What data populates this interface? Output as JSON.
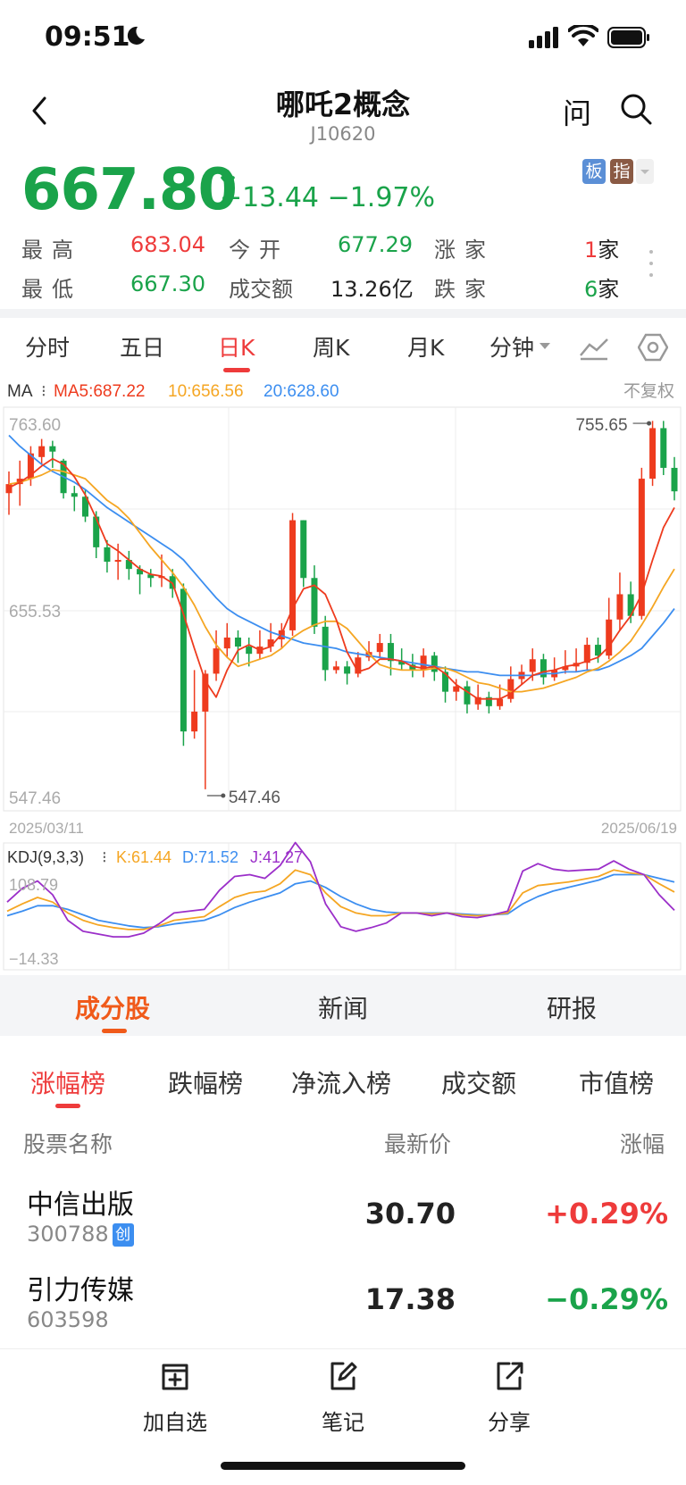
{
  "status_bar": {
    "time": "09:51"
  },
  "header": {
    "title": "哪吒2概念",
    "code": "J10620",
    "ask_label": "问"
  },
  "quote": {
    "price": "667.80",
    "change": "−13.44",
    "change_pct": "−1.97%",
    "badges": [
      {
        "label": "板",
        "color": "#5b8fd6"
      },
      {
        "label": "指",
        "color": "#8a5a44"
      }
    ],
    "stats": {
      "high_label": "最高",
      "high": "683.04",
      "open_label": "今开",
      "open": "677.29",
      "up_label": "涨家",
      "up_count": "1",
      "up_unit": "家",
      "low_label": "最低",
      "low": "667.30",
      "amount_label": "成交额",
      "amount": "13.26亿",
      "down_label": "跌家",
      "down_count": "6",
      "down_unit": "家"
    }
  },
  "period_tabs": [
    "分时",
    "五日",
    "日K",
    "周K",
    "月K",
    "分钟"
  ],
  "period_active": "日K",
  "chart_data": [
    {
      "type": "candlestick",
      "legend": {
        "ma_label": "MA",
        "ma5": "MA5:687.22",
        "ma10": "10:656.56",
        "ma20": "20:628.60",
        "adjust": "不复权"
      },
      "y_ticks": [
        "763.60",
        "655.53",
        "547.46"
      ],
      "ylim": [
        547.46,
        763.6
      ],
      "x_start": "2025/03/11",
      "x_end": "2025/06/19",
      "high_marker": "755.65",
      "low_marker": "547.46",
      "colors": {
        "up": "#ee3b1e",
        "down": "#1aa34a",
        "ma5": "#ee3b1e",
        "ma10": "#f5a623",
        "ma20": "#3c8ef0"
      },
      "candles": [
        [
          716,
          721,
          704,
          728
        ],
        [
          721,
          724,
          709,
          734
        ],
        [
          724,
          738,
          720,
          742
        ],
        [
          736,
          742,
          732,
          746
        ],
        [
          742,
          739,
          730,
          745
        ],
        [
          734,
          716,
          713,
          735
        ],
        [
          716,
          714,
          706,
          720
        ],
        [
          714,
          703,
          700,
          718
        ],
        [
          703,
          686,
          680,
          706
        ],
        [
          686,
          678,
          672,
          690
        ],
        [
          678,
          679,
          668,
          688
        ],
        [
          679,
          674,
          668,
          684
        ],
        [
          674,
          671,
          660,
          676
        ],
        [
          671,
          669,
          664,
          674
        ],
        [
          669,
          670,
          664,
          682
        ],
        [
          670,
          663,
          658,
          674
        ],
        [
          663,
          584,
          576,
          666
        ],
        [
          584,
          595,
          580,
          618
        ],
        [
          595,
          616,
          552,
          618
        ],
        [
          616,
          630,
          612,
          640
        ],
        [
          630,
          636,
          625,
          644
        ],
        [
          636,
          631,
          622,
          640
        ],
        [
          631,
          627,
          620,
          636
        ],
        [
          627,
          631,
          624,
          640
        ],
        [
          631,
          635,
          628,
          644
        ],
        [
          635,
          640,
          630,
          644
        ],
        [
          640,
          701,
          637,
          705
        ],
        [
          701,
          669,
          664,
          701
        ],
        [
          669,
          642,
          638,
          676
        ],
        [
          642,
          618,
          612,
          648
        ],
        [
          618,
          620,
          616,
          623
        ],
        [
          620,
          616,
          610,
          623
        ],
        [
          616,
          625,
          614,
          628
        ],
        [
          625,
          628,
          623,
          634
        ],
        [
          628,
          633,
          625,
          638
        ],
        [
          633,
          623,
          615,
          638
        ],
        [
          623,
          621,
          618,
          630
        ],
        [
          621,
          618,
          614,
          627
        ],
        [
          618,
          626,
          614,
          630
        ],
        [
          626,
          617,
          612,
          628
        ],
        [
          617,
          606,
          600,
          620
        ],
        [
          606,
          609,
          601,
          613
        ],
        [
          609,
          599,
          594,
          612
        ],
        [
          599,
          603,
          596,
          610
        ],
        [
          603,
          598,
          594,
          606
        ],
        [
          598,
          602,
          596,
          610
        ],
        [
          602,
          613,
          600,
          620
        ],
        [
          613,
          617,
          610,
          621
        ],
        [
          617,
          624,
          612,
          630
        ],
        [
          624,
          614,
          610,
          627
        ],
        [
          614,
          618,
          612,
          625
        ],
        [
          618,
          620,
          616,
          629
        ],
        [
          620,
          622,
          617,
          630
        ],
        [
          622,
          632,
          618,
          636
        ],
        [
          632,
          626,
          622,
          636
        ],
        [
          626,
          646,
          624,
          658
        ],
        [
          646,
          660,
          640,
          672
        ],
        [
          660,
          648,
          644,
          667
        ],
        [
          648,
          724,
          646,
          730
        ],
        [
          724,
          752,
          720,
          756
        ],
        [
          752,
          730,
          726,
          756
        ],
        [
          730,
          717,
          712,
          736
        ]
      ],
      "ma5": [
        719,
        722,
        726,
        731,
        735,
        732,
        725,
        715,
        702,
        688,
        684,
        679,
        674,
        671,
        670,
        666,
        649,
        630,
        612,
        603,
        618,
        629,
        632,
        629,
        631,
        638,
        652,
        663,
        665,
        660,
        646,
        628,
        617,
        619,
        624,
        624,
        623,
        620,
        619,
        620,
        616,
        610,
        606,
        602,
        602,
        602,
        605,
        610,
        615,
        617,
        618,
        620,
        621,
        623,
        625,
        631,
        640,
        648,
        660,
        679,
        697,
        708
      ],
      "ma10": [
        721,
        722,
        724,
        726,
        729,
        728,
        726,
        724,
        718,
        712,
        708,
        702,
        694,
        686,
        679,
        672,
        664,
        654,
        642,
        632,
        625,
        620,
        622,
        624,
        626,
        630,
        636,
        640,
        643,
        645,
        645,
        641,
        634,
        627,
        621,
        619,
        618,
        618,
        618,
        619,
        619,
        617,
        614,
        611,
        610,
        608,
        606,
        606,
        607,
        608,
        610,
        612,
        614,
        617,
        619,
        623,
        628,
        634,
        643,
        653,
        664,
        674
      ],
      "ma20": [
        748,
        742,
        737,
        732,
        728,
        725,
        722,
        718,
        713,
        708,
        704,
        700,
        696,
        692,
        688,
        684,
        679,
        672,
        665,
        658,
        652,
        648,
        645,
        642,
        639,
        637,
        635,
        633,
        632,
        631,
        630,
        628,
        627,
        626,
        625,
        624,
        623,
        622,
        621,
        620,
        619,
        618,
        617,
        617,
        616,
        615,
        615,
        615,
        615,
        616,
        616,
        617,
        617,
        618,
        618,
        620,
        623,
        626,
        630,
        637,
        644,
        652
      ]
    },
    {
      "type": "line",
      "legend": {
        "label": "KDJ(9,3,3)",
        "k": "K:61.44",
        "d": "D:71.52",
        "j": "J:41.27"
      },
      "y_ticks": [
        "108.79",
        "−14.33"
      ],
      "ylim": [
        -14.33,
        108.79
      ],
      "colors": {
        "k": "#f5a623",
        "d": "#3c8ef0",
        "j": "#9b2fc9"
      },
      "k": [
        40,
        48,
        55,
        50,
        38,
        30,
        25,
        22,
        20,
        20,
        24,
        30,
        32,
        34,
        45,
        55,
        60,
        62,
        70,
        85,
        80,
        60,
        45,
        38,
        35,
        35,
        38,
        38,
        37,
        38,
        36,
        35,
        36,
        38,
        60,
        68,
        70,
        72,
        75,
        78,
        85,
        82,
        80,
        70,
        61
      ],
      "d": [
        35,
        40,
        46,
        46,
        42,
        36,
        30,
        27,
        24,
        22,
        23,
        26,
        28,
        30,
        36,
        44,
        50,
        55,
        60,
        70,
        73,
        66,
        56,
        48,
        42,
        39,
        38,
        38,
        38,
        38,
        37,
        36,
        36,
        37,
        48,
        56,
        62,
        66,
        70,
        74,
        80,
        80,
        80,
        76,
        72
      ],
      "j": [
        50,
        65,
        73,
        58,
        30,
        18,
        15,
        12,
        12,
        16,
        26,
        38,
        40,
        42,
        63,
        78,
        80,
        76,
        90,
        115,
        94,
        48,
        23,
        18,
        22,
        27,
        38,
        38,
        35,
        38,
        34,
        33,
        36,
        40,
        84,
        92,
        86,
        84,
        85,
        86,
        95,
        86,
        80,
        58,
        41
      ]
    }
  ],
  "section_tabs": [
    "成分股",
    "新闻",
    "研报"
  ],
  "section_active": "成分股",
  "rank_tabs": [
    "涨幅榜",
    "跌幅榜",
    "净流入榜",
    "成交额",
    "市值榜"
  ],
  "rank_active": "涨幅榜",
  "table": {
    "headers": {
      "name": "股票名称",
      "price": "最新价",
      "change": "涨幅"
    },
    "rows": [
      {
        "name": "中信出版",
        "code": "300788",
        "tag": "创",
        "price": "30.70",
        "change": "+0.29%"
      },
      {
        "name": "引力传媒",
        "code": "603598",
        "tag": "",
        "price": "17.38",
        "change": "−0.29%"
      }
    ]
  },
  "toolbar": [
    {
      "label": "加自选",
      "icon": "add-watchlist-icon"
    },
    {
      "label": "笔记",
      "icon": "note-icon"
    },
    {
      "label": "分享",
      "icon": "share-icon"
    }
  ]
}
